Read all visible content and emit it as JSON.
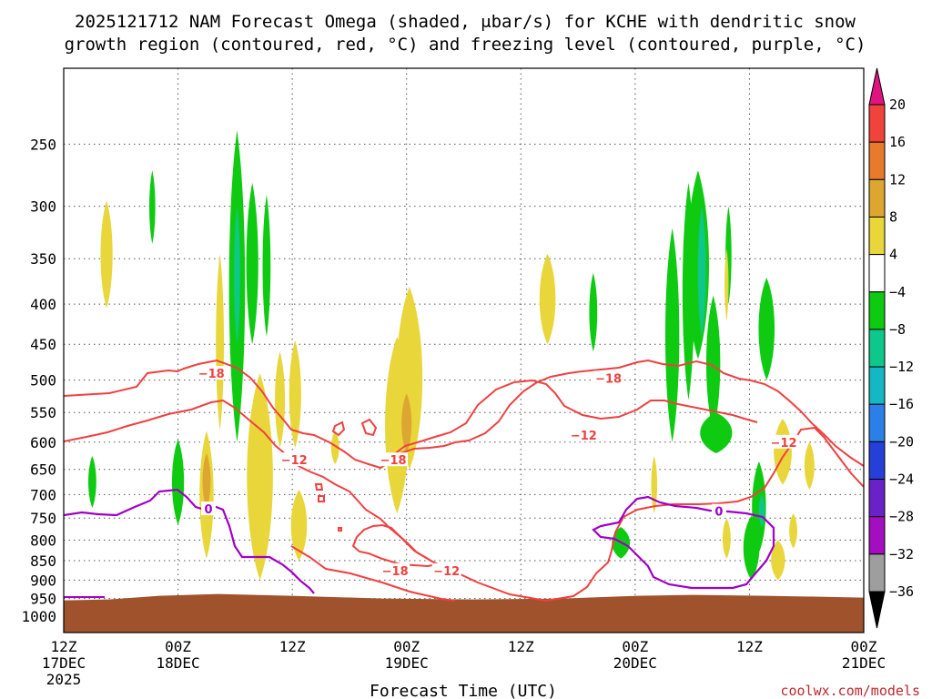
{
  "title_line1": "2025121712 NAM Forecast Omega (shaded, μbar/s) for KCHE with dendritic snow",
  "title_line2": "growth region (contoured, red, °C) and freezing level (contoured, purple, °C)",
  "credit": "coolwx.com/models",
  "chart_data": {
    "type": "heatmap",
    "title": "2025121712 NAM Forecast Omega (shaded, μbar/s) for KCHE with dendritic snow growth region (contoured, red, °C) and freezing level (contoured, purple, °C)",
    "xlabel": "Forecast Time (UTC)",
    "ylabel": "",
    "y_scale": "log-pressure",
    "y_inverted": true,
    "y_range_hPa": [
      1050,
      200
    ],
    "y_ticks": [
      250,
      300,
      350,
      400,
      450,
      500,
      550,
      600,
      650,
      700,
      750,
      800,
      850,
      900,
      950,
      1000
    ],
    "x_range_hours": [
      0,
      84
    ],
    "x_ticks": [
      {
        "hour": 0,
        "line1": "12Z",
        "line2": "17DEC",
        "line3": "2025"
      },
      {
        "hour": 12,
        "line1": "00Z",
        "line2": "18DEC",
        "line3": ""
      },
      {
        "hour": 24,
        "line1": "12Z",
        "line2": "",
        "line3": ""
      },
      {
        "hour": 36,
        "line1": "00Z",
        "line2": "19DEC",
        "line3": ""
      },
      {
        "hour": 48,
        "line1": "12Z",
        "line2": "",
        "line3": ""
      },
      {
        "hour": 60,
        "line1": "00Z",
        "line2": "20DEC",
        "line3": ""
      },
      {
        "hour": 72,
        "line1": "12Z",
        "line2": "",
        "line3": ""
      },
      {
        "hour": 84,
        "line1": "00Z",
        "line2": "21DEC",
        "line3": ""
      }
    ],
    "grid": true,
    "legend": {
      "placement": "right",
      "labels": [
        "20",
        "16",
        "12",
        "8",
        "4",
        "−4",
        "−8",
        "−12",
        "−16",
        "−20",
        "−24",
        "−28",
        "−32",
        "−36"
      ],
      "colors": [
        "#e0147e",
        "#f0433c",
        "#e87a2b",
        "#dca630",
        "#e8d63a",
        "#ffffff",
        "#0ecb12",
        "#0ec78a",
        "#14b8c4",
        "#2b80e8",
        "#2440d8",
        "#6a22c8",
        "#a20ec0",
        "#9e9e9e",
        "#000000"
      ]
    },
    "terrain_color": "#a0522d",
    "terrain_surface_hPa": 945,
    "contours": {
      "dendritic_color": "#f04040",
      "freezing_color": "#a000c8",
      "labels": [
        {
          "text": "−18",
          "hour": 15.5,
          "hPa": 490,
          "kind": "dendritic"
        },
        {
          "text": "−12",
          "hour": 24.2,
          "hPa": 632,
          "kind": "dendritic"
        },
        {
          "text": "−18",
          "hour": 34.6,
          "hPa": 632,
          "kind": "dendritic"
        },
        {
          "text": "−18",
          "hour": 34.8,
          "hPa": 875,
          "kind": "dendritic"
        },
        {
          "text": "−12",
          "hour": 40.2,
          "hPa": 875,
          "kind": "dendritic"
        },
        {
          "text": "−12",
          "hour": 54.6,
          "hPa": 588,
          "kind": "dendritic"
        },
        {
          "text": "−18",
          "hour": 57.2,
          "hPa": 497,
          "kind": "dendritic"
        },
        {
          "text": "−12",
          "hour": 75.6,
          "hPa": 600,
          "kind": "dendritic"
        },
        {
          "text": "0",
          "hour": 15.2,
          "hPa": 730,
          "kind": "freezing"
        },
        {
          "text": "0",
          "hour": 68.8,
          "hPa": 735,
          "kind": "freezing"
        }
      ]
    },
    "omega_cells": [
      {
        "hour": 4.5,
        "p1": 295,
        "p2": 405,
        "halfwidth_h": 0.6,
        "value": 4
      },
      {
        "hour": 9.3,
        "p1": 270,
        "p2": 335,
        "halfwidth_h": 0.3,
        "value": -6
      },
      {
        "hour": 3.0,
        "p1": 625,
        "p2": 728,
        "halfwidth_h": 0.4,
        "value": -6
      },
      {
        "hour": 12.0,
        "p1": 595,
        "p2": 765,
        "halfwidth_h": 0.6,
        "value": -6
      },
      {
        "hour": 15.0,
        "p1": 580,
        "p2": 845,
        "halfwidth_h": 0.7,
        "value": 5
      },
      {
        "hour": 15.0,
        "p1": 620,
        "p2": 730,
        "halfwidth_h": 0.4,
        "value": 8
      },
      {
        "hour": 16.4,
        "p1": 345,
        "p2": 580,
        "halfwidth_h": 0.4,
        "value": 4
      },
      {
        "hour": 18.2,
        "p1": 240,
        "p2": 600,
        "halfwidth_h": 0.8,
        "value": -6
      },
      {
        "hour": 18.2,
        "p1": 300,
        "p2": 450,
        "halfwidth_h": 0.3,
        "value": -10
      },
      {
        "hour": 19.8,
        "p1": 280,
        "p2": 450,
        "halfwidth_h": 0.6,
        "value": -6
      },
      {
        "hour": 21.3,
        "p1": 290,
        "p2": 440,
        "halfwidth_h": 0.4,
        "value": -6
      },
      {
        "hour": 20.6,
        "p1": 490,
        "p2": 900,
        "halfwidth_h": 1.3,
        "value": 4
      },
      {
        "hour": 22.7,
        "p1": 460,
        "p2": 610,
        "halfwidth_h": 0.5,
        "value": 4
      },
      {
        "hour": 24.3,
        "p1": 445,
        "p2": 610,
        "halfwidth_h": 0.6,
        "value": 4
      },
      {
        "hour": 24.7,
        "p1": 690,
        "p2": 850,
        "halfwidth_h": 0.8,
        "value": 4
      },
      {
        "hour": 28.5,
        "p1": 580,
        "p2": 640,
        "halfwidth_h": 0.4,
        "value": 4
      },
      {
        "hour": 35.0,
        "p1": 440,
        "p2": 740,
        "halfwidth_h": 1.2,
        "value": 4
      },
      {
        "hour": 36.3,
        "p1": 380,
        "p2": 650,
        "halfwidth_h": 1.3,
        "value": 4
      },
      {
        "hour": 36.0,
        "p1": 520,
        "p2": 620,
        "halfwidth_h": 0.5,
        "value": 8
      },
      {
        "hour": 50.8,
        "p1": 345,
        "p2": 450,
        "halfwidth_h": 0.8,
        "value": 4
      },
      {
        "hour": 55.6,
        "p1": 365,
        "p2": 460,
        "halfwidth_h": 0.4,
        "value": -6
      },
      {
        "hour": 58.5,
        "p1": 770,
        "p2": 845,
        "halfwidth_h": 0.9,
        "value": -6
      },
      {
        "hour": 62.0,
        "p1": 625,
        "p2": 740,
        "halfwidth_h": 0.3,
        "value": 4
      },
      {
        "hour": 63.9,
        "p1": 320,
        "p2": 600,
        "halfwidth_h": 0.7,
        "value": -6
      },
      {
        "hour": 65.6,
        "p1": 280,
        "p2": 530,
        "halfwidth_h": 0.6,
        "value": -6
      },
      {
        "hour": 66.6,
        "p1": 270,
        "p2": 470,
        "halfwidth_h": 1.1,
        "value": -6
      },
      {
        "hour": 67.0,
        "p1": 300,
        "p2": 440,
        "halfwidth_h": 0.4,
        "value": -10
      },
      {
        "hour": 68.2,
        "p1": 390,
        "p2": 580,
        "halfwidth_h": 0.7,
        "value": -6
      },
      {
        "hour": 68.5,
        "p1": 550,
        "p2": 620,
        "halfwidth_h": 1.6,
        "value": -6
      },
      {
        "hour": 69.8,
        "p1": 300,
        "p2": 400,
        "halfwidth_h": 0.3,
        "value": -6
      },
      {
        "hour": 69.6,
        "p1": 340,
        "p2": 420,
        "halfwidth_h": 0.2,
        "value": 4
      },
      {
        "hour": 69.6,
        "p1": 750,
        "p2": 845,
        "halfwidth_h": 0.4,
        "value": 4
      },
      {
        "hour": 72.2,
        "p1": 745,
        "p2": 900,
        "halfwidth_h": 0.8,
        "value": -6
      },
      {
        "hour": 73.0,
        "p1": 635,
        "p2": 830,
        "halfwidth_h": 0.7,
        "value": -6
      },
      {
        "hour": 73.3,
        "p1": 700,
        "p2": 770,
        "halfwidth_h": 0.3,
        "value": -10
      },
      {
        "hour": 73.8,
        "p1": 370,
        "p2": 500,
        "halfwidth_h": 0.8,
        "value": -6
      },
      {
        "hour": 75.5,
        "p1": 560,
        "p2": 680,
        "halfwidth_h": 0.9,
        "value": 4
      },
      {
        "hour": 75.0,
        "p1": 800,
        "p2": 900,
        "halfwidth_h": 0.7,
        "value": 4
      },
      {
        "hour": 76.6,
        "p1": 740,
        "p2": 820,
        "halfwidth_h": 0.4,
        "value": 4
      },
      {
        "hour": 78.3,
        "p1": 600,
        "p2": 690,
        "halfwidth_h": 0.5,
        "value": 4
      }
    ]
  }
}
